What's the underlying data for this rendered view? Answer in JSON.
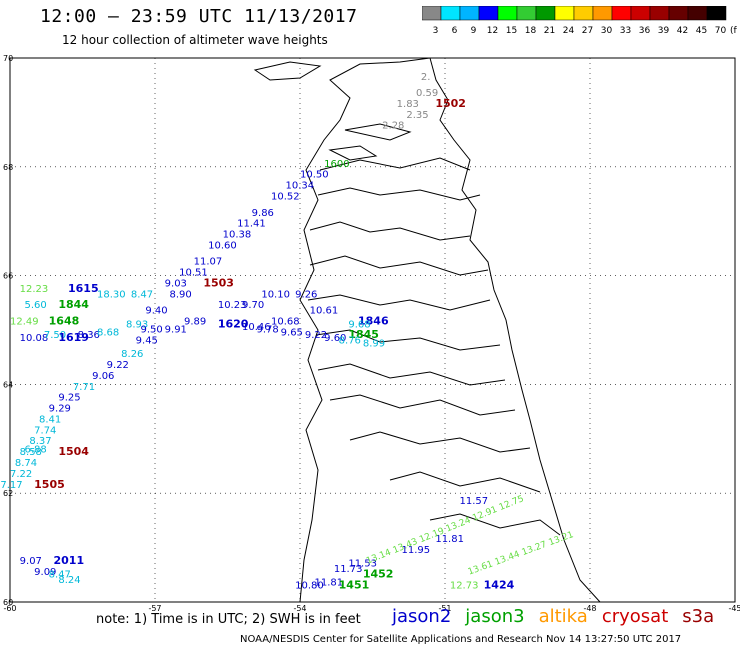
{
  "header": {
    "title": "12:00 – 23:59 UTC 11/13/2017",
    "subtitle": "12 hour collection of altimeter wave heights"
  },
  "legend": {
    "colors": [
      "#888888",
      "#00e5ff",
      "#00b4ff",
      "#0000ff",
      "#00ff00",
      "#33cc33",
      "#009900",
      "#ffff00",
      "#ffcc00",
      "#ff9900",
      "#ff0000",
      "#cc0000",
      "#990000",
      "#660000",
      "#440000",
      "#000000"
    ],
    "labels": [
      "3",
      "6",
      "9",
      "12",
      "15",
      "18",
      "21",
      "24",
      "27",
      "30",
      "33",
      "36",
      "39",
      "42",
      "45",
      "70"
    ],
    "unit": "(ft)"
  },
  "axes": {
    "lon_ticks": [
      "-60",
      "-57",
      "-54",
      "-51",
      "-48",
      "-45"
    ],
    "lat_ticks": [
      "70",
      "68",
      "66",
      "64",
      "62",
      "60"
    ]
  },
  "colors": {
    "jason2": "#0000cc",
    "jason3": "#00a000",
    "altika": "#ff9900",
    "cryosat": "#cc0000",
    "s3a": "#990000",
    "gray": "#888888",
    "cyan": "#00b8d8",
    "lightgreen": "#66dd44",
    "coast": "#000000"
  },
  "observations": [
    {
      "t": "2.",
      "c": "gray",
      "lon": -51.5,
      "lat": 69.6
    },
    {
      "t": "0.59",
      "c": "gray",
      "lon": -51.6,
      "lat": 69.3
    },
    {
      "t": "1.83",
      "c": "gray",
      "lon": -52.0,
      "lat": 69.1
    },
    {
      "t": "1502",
      "c": "s3a",
      "lon": -51.2,
      "lat": 69.1,
      "b": true
    },
    {
      "t": "2.35",
      "c": "gray",
      "lon": -51.8,
      "lat": 68.9
    },
    {
      "t": "2.28",
      "c": "gray",
      "lon": -52.3,
      "lat": 68.7
    },
    {
      "t": "1600",
      "c": "jason3",
      "lon": -53.5,
      "lat": 68.0
    },
    {
      "t": "10.50",
      "c": "jason2",
      "lon": -54.0,
      "lat": 67.8
    },
    {
      "t": "10.34",
      "c": "jason2",
      "lon": -54.3,
      "lat": 67.6
    },
    {
      "t": "10.52",
      "c": "jason2",
      "lon": -54.6,
      "lat": 67.4
    },
    {
      "t": "9.86",
      "c": "jason2",
      "lon": -55.0,
      "lat": 67.1
    },
    {
      "t": "11.41",
      "c": "jason2",
      "lon": -55.3,
      "lat": 66.9
    },
    {
      "t": "10.38",
      "c": "jason2",
      "lon": -55.6,
      "lat": 66.7
    },
    {
      "t": "10.60",
      "c": "jason2",
      "lon": -55.9,
      "lat": 66.5
    },
    {
      "t": "11.07",
      "c": "jason2",
      "lon": -56.2,
      "lat": 66.2
    },
    {
      "t": "10.51",
      "c": "jason2",
      "lon": -56.5,
      "lat": 66.0
    },
    {
      "t": "9.03",
      "c": "jason2",
      "lon": -56.8,
      "lat": 65.8
    },
    {
      "t": "1503",
      "c": "s3a",
      "lon": -56.0,
      "lat": 65.8,
      "b": true
    },
    {
      "t": "12.23",
      "c": "lightgreen",
      "lon": -59.8,
      "lat": 65.7
    },
    {
      "t": "1615",
      "c": "jason2",
      "lon": -58.8,
      "lat": 65.7,
      "b": true
    },
    {
      "t": "18.30",
      "c": "cyan",
      "lon": -58.2,
      "lat": 65.6
    },
    {
      "t": "8.47",
      "c": "cyan",
      "lon": -57.5,
      "lat": 65.6
    },
    {
      "t": "8.90",
      "c": "jason2",
      "lon": -56.7,
      "lat": 65.6
    },
    {
      "t": "10.10",
      "c": "jason2",
      "lon": -54.8,
      "lat": 65.6
    },
    {
      "t": "9.26",
      "c": "jason2",
      "lon": -54.1,
      "lat": 65.6
    },
    {
      "t": "5.60",
      "c": "cyan",
      "lon": -59.7,
      "lat": 65.4
    },
    {
      "t": "1844",
      "c": "jason3",
      "lon": -59.0,
      "lat": 65.4,
      "b": true
    },
    {
      "t": "9.40",
      "c": "jason2",
      "lon": -57.2,
      "lat": 65.3
    },
    {
      "t": "10.23",
      "c": "jason2",
      "lon": -55.7,
      "lat": 65.4
    },
    {
      "t": "9.70",
      "c": "jason2",
      "lon": -55.2,
      "lat": 65.4
    },
    {
      "t": "10.61",
      "c": "jason2",
      "lon": -53.8,
      "lat": 65.3
    },
    {
      "t": "1846",
      "c": "jason2",
      "lon": -52.8,
      "lat": 65.1,
      "b": true
    },
    {
      "t": "12.49",
      "c": "lightgreen",
      "lon": -60.0,
      "lat": 65.1
    },
    {
      "t": "1648",
      "c": "jason3",
      "lon": -59.2,
      "lat": 65.1,
      "b": true
    },
    {
      "t": "8.93",
      "c": "cyan",
      "lon": -57.6,
      "lat": 65.05
    },
    {
      "t": "9.89",
      "c": "jason2",
      "lon": -56.4,
      "lat": 65.1
    },
    {
      "t": "1620",
      "c": "jason2",
      "lon": -55.7,
      "lat": 65.05,
      "b": true
    },
    {
      "t": "10.68",
      "c": "jason2",
      "lon": -54.6,
      "lat": 65.1
    },
    {
      "t": "9.68",
      "c": "cyan",
      "lon": -53.0,
      "lat": 65.05
    },
    {
      "t": "9.50",
      "c": "jason2",
      "lon": -57.3,
      "lat": 64.95
    },
    {
      "t": "9.91",
      "c": "jason2",
      "lon": -56.8,
      "lat": 64.95
    },
    {
      "t": "10.46",
      "c": "jason2",
      "lon": -55.2,
      "lat": 65.0
    },
    {
      "t": "9.78",
      "c": "jason2",
      "lon": -54.9,
      "lat": 64.95
    },
    {
      "t": "9.65",
      "c": "jason2",
      "lon": -54.4,
      "lat": 64.9
    },
    {
      "t": "9.22",
      "c": "jason2",
      "lon": -53.9,
      "lat": 64.85
    },
    {
      "t": "1845",
      "c": "jason3",
      "lon": -53.0,
      "lat": 64.85,
      "b": true
    },
    {
      "t": "10.08",
      "c": "jason2",
      "lon": -59.8,
      "lat": 64.8
    },
    {
      "t": "7.50",
      "c": "cyan",
      "lon": -59.3,
      "lat": 64.85
    },
    {
      "t": "1619",
      "c": "jason2",
      "lon": -59.0,
      "lat": 64.8,
      "b": true
    },
    {
      "t": "8.36",
      "c": "jason2",
      "lon": -58.6,
      "lat": 64.85
    },
    {
      "t": "8.68",
      "c": "cyan",
      "lon": -58.2,
      "lat": 64.9
    },
    {
      "t": "9.45",
      "c": "jason2",
      "lon": -57.4,
      "lat": 64.75
    },
    {
      "t": "9.60",
      "c": "jason2",
      "lon": -53.5,
      "lat": 64.8
    },
    {
      "t": "8.76",
      "c": "cyan",
      "lon": -53.2,
      "lat": 64.75
    },
    {
      "t": "8.99",
      "c": "cyan",
      "lon": -52.7,
      "lat": 64.7
    },
    {
      "t": "8.26",
      "c": "cyan",
      "lon": -57.7,
      "lat": 64.5
    },
    {
      "t": "9.22",
      "c": "jason2",
      "lon": -58.0,
      "lat": 64.3
    },
    {
      "t": "9.06",
      "c": "jason2",
      "lon": -58.3,
      "lat": 64.1
    },
    {
      "t": "7.71",
      "c": "cyan",
      "lon": -58.7,
      "lat": 63.9
    },
    {
      "t": "9.25",
      "c": "jason2",
      "lon": -59.0,
      "lat": 63.7
    },
    {
      "t": "9.29",
      "c": "jason2",
      "lon": -59.2,
      "lat": 63.5
    },
    {
      "t": "8.41",
      "c": "cyan",
      "lon": -59.4,
      "lat": 63.3
    },
    {
      "t": "7.74",
      "c": "cyan",
      "lon": -59.5,
      "lat": 63.1
    },
    {
      "t": "8.37",
      "c": "cyan",
      "lon": -59.6,
      "lat": 62.9
    },
    {
      "t": "8.58",
      "c": "cyan",
      "lon": -59.8,
      "lat": 62.7
    },
    {
      "t": "6.88",
      "c": "cyan",
      "lon": -59.7,
      "lat": 62.75
    },
    {
      "t": "1504",
      "c": "s3a",
      "lon": -59.0,
      "lat": 62.7,
      "b": true
    },
    {
      "t": "8.74",
      "c": "cyan",
      "lon": -59.9,
      "lat": 62.5
    },
    {
      "t": "7.22",
      "c": "cyan",
      "lon": -60.0,
      "lat": 62.3
    },
    {
      "t": "7.17",
      "c": "cyan",
      "lon": -60.2,
      "lat": 62.1
    },
    {
      "t": "1505",
      "c": "s3a",
      "lon": -59.5,
      "lat": 62.1,
      "b": true
    },
    {
      "t": "11.57",
      "c": "jason2",
      "lon": -50.7,
      "lat": 61.8
    },
    {
      "t": "11.81",
      "c": "jason2",
      "lon": -51.2,
      "lat": 61.1
    },
    {
      "t": "11.95",
      "c": "jason2",
      "lon": -51.9,
      "lat": 60.9
    },
    {
      "t": "9.07",
      "c": "jason2",
      "lon": -59.8,
      "lat": 60.7
    },
    {
      "t": "2011",
      "c": "jason2",
      "lon": -59.1,
      "lat": 60.7,
      "b": true
    },
    {
      "t": "9.09",
      "c": "jason2",
      "lon": -59.5,
      "lat": 60.5
    },
    {
      "t": "8.47",
      "c": "cyan",
      "lon": -59.2,
      "lat": 60.45
    },
    {
      "t": "8.24",
      "c": "cyan",
      "lon": -59.0,
      "lat": 60.35
    },
    {
      "t": "11.53",
      "c": "jason2",
      "lon": -53.0,
      "lat": 60.65
    },
    {
      "t": "11.73",
      "c": "jason2",
      "lon": -53.3,
      "lat": 60.55
    },
    {
      "t": "1452",
      "c": "jason3",
      "lon": -52.7,
      "lat": 60.45,
      "b": true
    },
    {
      "t": "11.81",
      "c": "jason2",
      "lon": -53.7,
      "lat": 60.3
    },
    {
      "t": "10.80",
      "c": "jason2",
      "lon": -54.1,
      "lat": 60.25
    },
    {
      "t": "1451",
      "c": "jason3",
      "lon": -53.2,
      "lat": 60.25,
      "b": true
    },
    {
      "t": "12.73",
      "c": "lightgreen",
      "lon": -50.9,
      "lat": 60.25
    },
    {
      "t": "1424",
      "c": "jason2",
      "lon": -50.2,
      "lat": 60.25,
      "b": true
    }
  ],
  "diagonal_labels": [
    {
      "t": "13.14 13.43 12.19 13.24 12.91 12.75",
      "c": "lightgreen",
      "lon": -52.6,
      "lat": 60.7,
      "rot": -22
    },
    {
      "t": "13.61 13.44 13.27 13.21",
      "c": "lightgreen",
      "lon": -50.5,
      "lat": 60.5,
      "rot": -20
    }
  ],
  "footer": {
    "note": "note: 1) Time is in UTC; 2) SWH is in feet",
    "satellites": [
      {
        "name": "jason2",
        "color": "#0000cc"
      },
      {
        "name": "jason3",
        "color": "#00a000"
      },
      {
        "name": "altika",
        "color": "#ff9900"
      },
      {
        "name": "cryosat",
        "color": "#cc0000"
      },
      {
        "name": "s3a",
        "color": "#990000"
      }
    ],
    "credit": "NOAA/NESDIS Center for Satellite Applications and Research   Nov 14 13:27:50 UTC 2017"
  }
}
